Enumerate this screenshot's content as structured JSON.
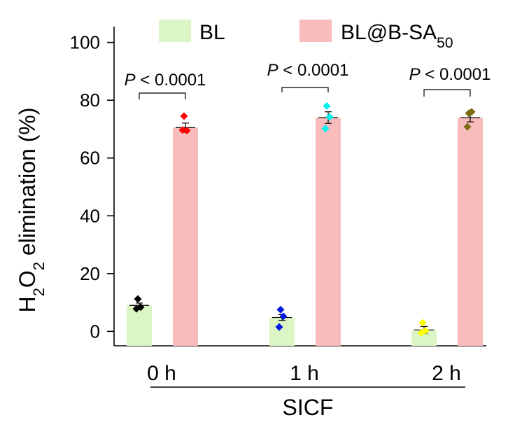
{
  "chart_data": {
    "type": "bar",
    "categories": [
      "0 h",
      "1 h",
      "2 h"
    ],
    "xlabel": "SICF",
    "ylabel": {
      "prefix": "H",
      "sub1": "2",
      "mid": "O",
      "sub2": "2",
      "suffix": " elimination (%)"
    },
    "ylim": [
      -5,
      105
    ],
    "yticks": [
      0,
      20,
      40,
      60,
      80,
      100
    ],
    "grid": false,
    "legend_placement": "top",
    "series": [
      {
        "name": "BL",
        "name_sub": "",
        "color": "#dcf5c4",
        "values": [
          9.0,
          4.8,
          0.5
        ],
        "errors": [
          0.8,
          1.0,
          1.2
        ],
        "points": [
          [
            11.2,
            8.4,
            7.8
          ],
          [
            7.5,
            5.2,
            1.5
          ],
          [
            3.0,
            0.2,
            -0.5
          ]
        ],
        "point_colors": [
          "#000000",
          "#0018e0",
          "#ffff00"
        ]
      },
      {
        "name": "BL@B-SA",
        "name_sub": "50",
        "color": "#f8bcbc",
        "values": [
          70.5,
          74.0,
          74.0
        ],
        "errors": [
          1.6,
          2.0,
          1.5
        ],
        "points": [
          [
            74.5,
            69.5,
            69.7
          ],
          [
            78.0,
            74.2,
            70.2
          ],
          [
            75.5,
            76.0,
            70.8
          ]
        ],
        "point_colors": [
          "#ff0000",
          "#00f0f0",
          "#7a6a10"
        ]
      }
    ],
    "annotations": [
      {
        "p_italic": "P",
        "p_text": " < 0.0001"
      },
      {
        "p_italic": "P",
        "p_text": " < 0.0001"
      },
      {
        "p_italic": "P",
        "p_text": " < 0.0001"
      }
    ]
  }
}
